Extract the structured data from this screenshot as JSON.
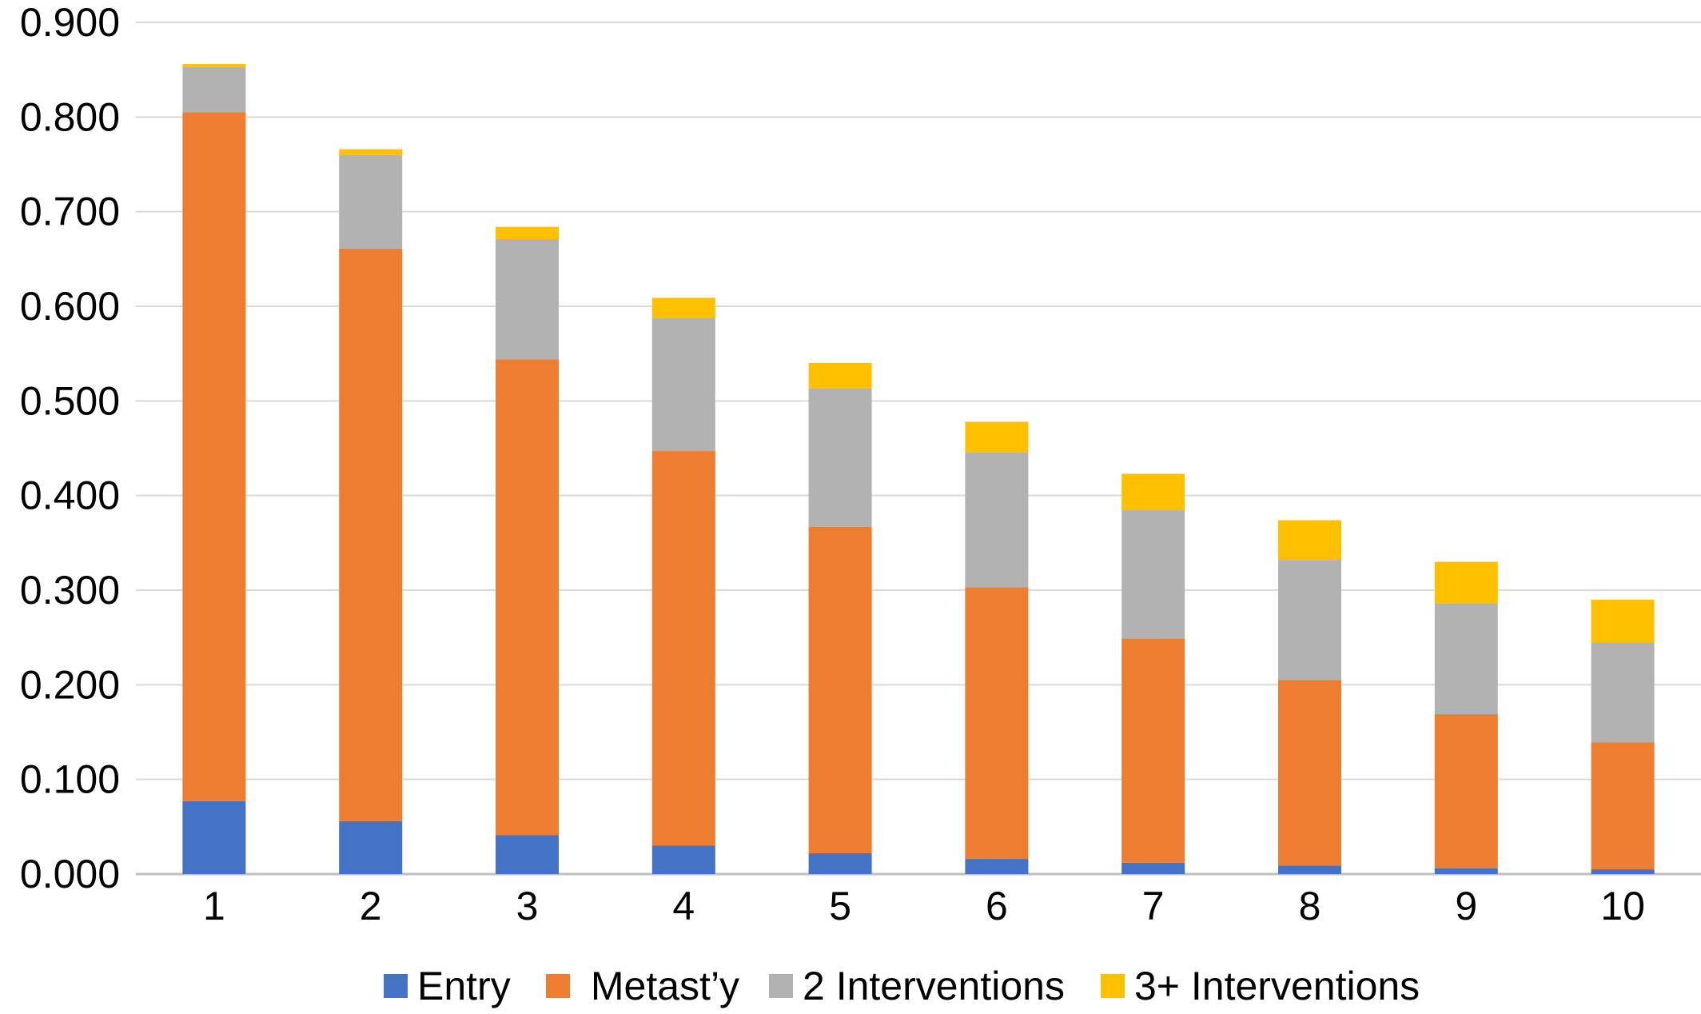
{
  "chart_data": {
    "type": "bar",
    "stacked": true,
    "categories": [
      "1",
      "2",
      "3",
      "4",
      "5",
      "6",
      "7",
      "8",
      "9",
      "10"
    ],
    "series": [
      {
        "name": "Entry",
        "color": "#4472C4",
        "values": [
          0.077,
          0.056,
          0.041,
          0.03,
          0.022,
          0.016,
          0.012,
          0.009,
          0.006,
          0.005
        ]
      },
      {
        "name": " Metast’y",
        "color": "#ED7D31",
        "values": [
          0.728,
          0.605,
          0.503,
          0.417,
          0.345,
          0.287,
          0.237,
          0.196,
          0.163,
          0.134
        ]
      },
      {
        "name": "2 Interventions",
        "color": "#B2B2B2",
        "values": [
          0.048,
          0.099,
          0.127,
          0.141,
          0.146,
          0.143,
          0.136,
          0.127,
          0.117,
          0.106
        ]
      },
      {
        "name": "3+ Interventions",
        "color": "#FFC000",
        "values": [
          0.003,
          0.006,
          0.013,
          0.021,
          0.027,
          0.032,
          0.038,
          0.042,
          0.044,
          0.045
        ]
      }
    ],
    "y_ticks": [
      "0.000",
      "0.100",
      "0.200",
      "0.300",
      "0.400",
      "0.500",
      "0.600",
      "0.700",
      "0.800",
      "0.900"
    ],
    "ylim": [
      0,
      0.9
    ],
    "title": "",
    "xlabel": "",
    "ylabel": "",
    "grid": true,
    "legend_position": "bottom"
  }
}
